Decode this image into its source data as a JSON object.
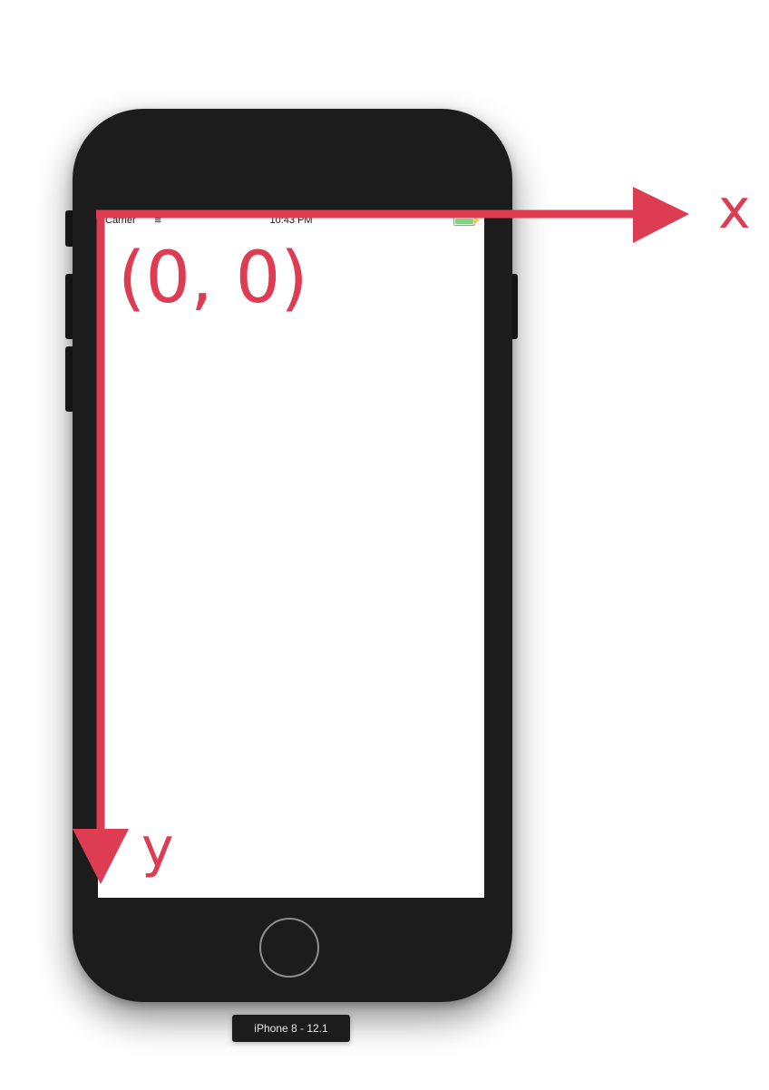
{
  "status_bar": {
    "carrier": "Carrier",
    "wifi_icon": "wifi-icon",
    "time": "10:43 PM",
    "battery_icon": "battery-icon",
    "bolt_icon": "charging-bolt-icon"
  },
  "annotation": {
    "origin": "(0, 0)",
    "x_axis_label": "x",
    "y_axis_label": "y",
    "color": "#dd3c52"
  },
  "device_label": "iPhone 8 - 12.1",
  "colors": {
    "phone_body": "#1c1c1c",
    "screen": "#ffffff",
    "axis": "#dd3c52",
    "battery": "#7fd37a"
  }
}
